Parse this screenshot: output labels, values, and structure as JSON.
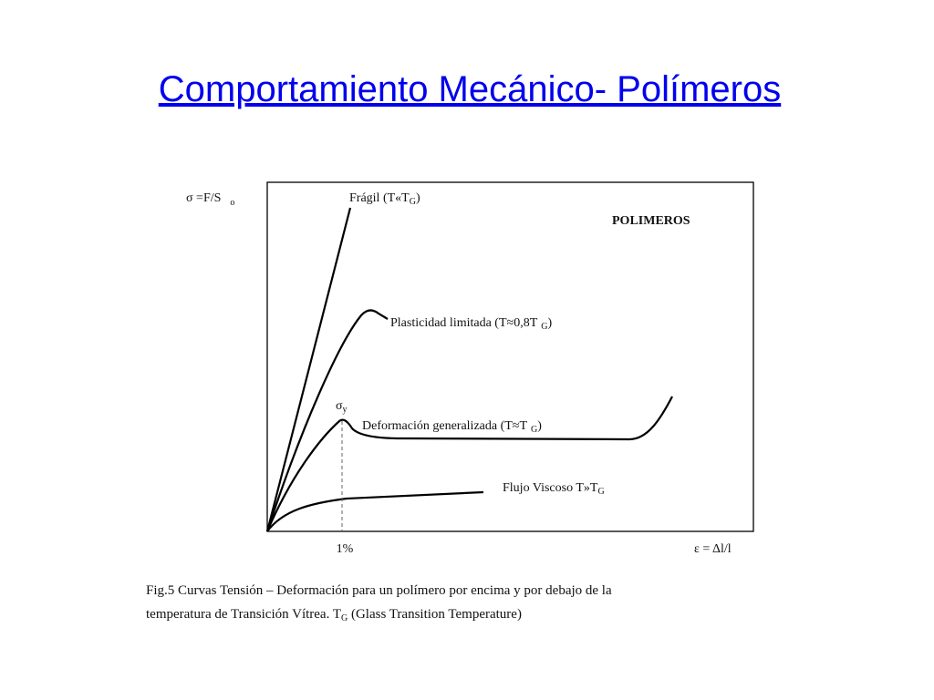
{
  "title": "Comportamiento Mecánico- Polímeros",
  "diagram": {
    "y_label": [
      "σ =F/S",
      "o"
    ],
    "x_label": "ε = Δl/l",
    "heading": "POLIMEROS",
    "strain_marker": "1%",
    "yield_label": [
      "σ",
      "y"
    ],
    "curves": [
      {
        "label": [
          "Frágil (T«T",
          "G",
          ")"
        ]
      },
      {
        "label": [
          "Plasticidad limitada (T≈0,8T",
          "G",
          ")"
        ]
      },
      {
        "label": [
          "Deformación generalizada (T≈T",
          "G",
          ")"
        ]
      },
      {
        "label": [
          "Flujo Viscoso T»T",
          "G"
        ]
      }
    ]
  },
  "caption": [
    [
      "Fig.5 Curvas Tensión – Deformación para un polímero por encima y por debajo de la"
    ],
    [
      "temperatura de Transición Vítrea. T",
      "G",
      " (Glass Transition Temperature)"
    ]
  ]
}
